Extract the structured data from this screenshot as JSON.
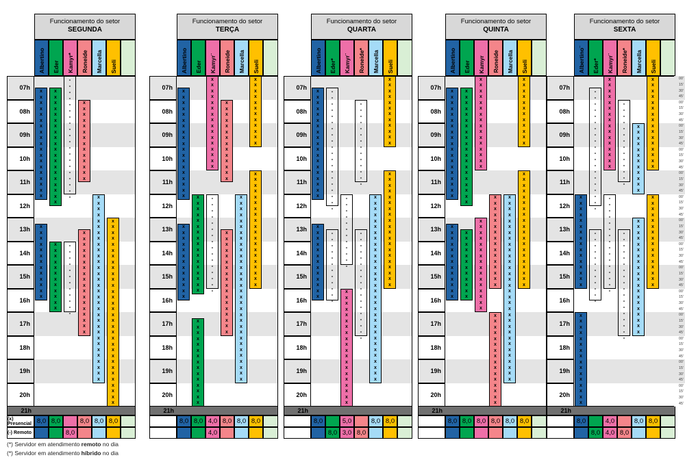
{
  "board": {
    "header_title": "Funcionamento do setor",
    "time_labels": [
      "07h",
      "08h",
      "09h",
      "10h",
      "11h",
      "12h",
      "13h",
      "14h",
      "15h",
      "16h",
      "17h",
      "18h",
      "19h",
      "20h",
      "21h"
    ],
    "quarter_labels": [
      "00'",
      "15'",
      "30'",
      "45'"
    ],
    "totals": {
      "presencial_label": "(x) Presencial",
      "remoto_label": "(-) Remoto"
    },
    "footnotes": [
      {
        "prefix": "(*) Servidor em atendimento ",
        "bold": "remoto",
        "suffix": " no dia"
      },
      {
        "prefix": "(*) Servidor em atendimento ",
        "bold": "híbrido",
        "suffix": " no dia"
      }
    ],
    "colors": {
      "albertino": "#2163A4",
      "eder": "#00A550",
      "kamyr": "#EE6FA8",
      "roneide": "#F4858A",
      "marcella": "#A5DBF7",
      "sueli": "#FFC000",
      "extra": "#D9EFD5",
      "stripe": "#E4E4E4",
      "dark_row": "#707070",
      "header_bg": "#D8D8D8"
    }
  },
  "chart_data": {
    "type": "table",
    "title": "Funcionamento do setor",
    "time_axis": {
      "start": "07:00",
      "end": "21:00",
      "step_minutes": 15
    },
    "symbols": {
      "presencial": "x",
      "remoto": "-"
    },
    "days": [
      {
        "day": "SEGUNDA",
        "people": [
          {
            "name": "Albertino",
            "color": "albertino",
            "presencial": "8,0",
            "remoto": "",
            "blocks": [
              {
                "start": "07:30",
                "end": "12:15",
                "mode": "presencial"
              },
              {
                "start": "13:15",
                "end": "16:30",
                "mode": "presencial"
              }
            ]
          },
          {
            "name": "Eder",
            "color": "eder",
            "presencial": "8,0",
            "remoto": "",
            "blocks": [
              {
                "start": "07:30",
                "end": "12:30",
                "mode": "presencial"
              },
              {
                "start": "14:00",
                "end": "17:00",
                "mode": "presencial"
              }
            ]
          },
          {
            "name": "Kamyr*",
            "color": "kamyr",
            "presencial": "",
            "remoto": "8,0",
            "blocks": [
              {
                "start": "07:00",
                "end": "12:00",
                "mode": "remoto"
              },
              {
                "start": "14:00",
                "end": "17:00",
                "mode": "remoto"
              }
            ]
          },
          {
            "name": "Roneide",
            "color": "roneide",
            "presencial": "8,0",
            "remoto": "",
            "blocks": [
              {
                "start": "08:00",
                "end": "11:30",
                "mode": "presencial"
              },
              {
                "start": "13:30",
                "end": "18:00",
                "mode": "presencial"
              }
            ]
          },
          {
            "name": "Marcella",
            "color": "marcella",
            "presencial": "8,0",
            "remoto": "",
            "blocks": [
              {
                "start": "12:00",
                "end": "20:00",
                "mode": "presencial"
              }
            ]
          },
          {
            "name": "Sueli",
            "color": "sueli",
            "presencial": "8,0",
            "remoto": "",
            "blocks": [
              {
                "start": "13:00",
                "end": "21:00",
                "mode": "presencial"
              }
            ]
          }
        ]
      },
      {
        "day": "TERÇA",
        "people": [
          {
            "name": "Albertino",
            "color": "albertino",
            "presencial": "8,0",
            "remoto": "",
            "blocks": [
              {
                "start": "07:30",
                "end": "12:15",
                "mode": "presencial"
              },
              {
                "start": "13:15",
                "end": "16:30",
                "mode": "presencial"
              }
            ]
          },
          {
            "name": "Eder",
            "color": "eder",
            "presencial": "8,0",
            "remoto": "",
            "blocks": [
              {
                "start": "12:00",
                "end": "16:15",
                "mode": "presencial"
              },
              {
                "start": "17:15",
                "end": "21:00",
                "mode": "presencial"
              }
            ]
          },
          {
            "name": "Kamyr¨",
            "color": "kamyr",
            "presencial": "4,0",
            "remoto": "4,0",
            "blocks": [
              {
                "start": "07:00",
                "end": "11:00",
                "mode": "presencial"
              },
              {
                "start": "12:00",
                "end": "16:00",
                "mode": "remoto"
              }
            ]
          },
          {
            "name": "Roneide",
            "color": "roneide",
            "presencial": "8,0",
            "remoto": "",
            "blocks": [
              {
                "start": "08:00",
                "end": "11:30",
                "mode": "presencial"
              },
              {
                "start": "13:30",
                "end": "18:00",
                "mode": "presencial"
              }
            ]
          },
          {
            "name": "Marcella",
            "color": "marcella",
            "presencial": "8,0",
            "remoto": "",
            "blocks": [
              {
                "start": "12:00",
                "end": "20:00",
                "mode": "presencial"
              }
            ]
          },
          {
            "name": "Sueli",
            "color": "sueli",
            "presencial": "8,0",
            "remoto": "",
            "blocks": [
              {
                "start": "07:00",
                "end": "10:00",
                "mode": "presencial"
              },
              {
                "start": "11:00",
                "end": "16:00",
                "mode": "presencial"
              }
            ]
          }
        ]
      },
      {
        "day": "QUARTA",
        "people": [
          {
            "name": "Albertino",
            "color": "albertino",
            "presencial": "8,0",
            "remoto": "",
            "blocks": [
              {
                "start": "07:30",
                "end": "12:15",
                "mode": "presencial"
              },
              {
                "start": "13:15",
                "end": "16:30",
                "mode": "presencial"
              }
            ]
          },
          {
            "name": "Eder*",
            "color": "eder",
            "presencial": "",
            "remoto": "8,0",
            "blocks": [
              {
                "start": "07:30",
                "end": "12:30",
                "mode": "remoto"
              },
              {
                "start": "13:30",
                "end": "16:30",
                "mode": "remoto"
              }
            ]
          },
          {
            "name": "Kamyr¨",
            "color": "kamyr",
            "presencial": "5,0",
            "remoto": "3,0",
            "blocks": [
              {
                "start": "12:00",
                "end": "15:00",
                "mode": "remoto"
              },
              {
                "start": "16:00",
                "end": "21:00",
                "mode": "presencial"
              }
            ]
          },
          {
            "name": "Roneide*",
            "color": "roneide",
            "presencial": "",
            "remoto": "8,0",
            "blocks": [
              {
                "start": "08:00",
                "end": "11:30",
                "mode": "remoto"
              },
              {
                "start": "13:30",
                "end": "18:00",
                "mode": "remoto"
              }
            ]
          },
          {
            "name": "Marcella",
            "color": "marcella",
            "presencial": "8,0",
            "remoto": "",
            "blocks": [
              {
                "start": "12:00",
                "end": "20:00",
                "mode": "presencial"
              }
            ]
          },
          {
            "name": "Sueli",
            "color": "sueli",
            "presencial": "8,0",
            "remoto": "",
            "blocks": [
              {
                "start": "07:00",
                "end": "10:00",
                "mode": "presencial"
              },
              {
                "start": "11:00",
                "end": "16:00",
                "mode": "presencial"
              }
            ]
          }
        ]
      },
      {
        "day": "QUINTA",
        "people": [
          {
            "name": "Albertino",
            "color": "albertino",
            "presencial": "8,0",
            "remoto": "",
            "blocks": [
              {
                "start": "07:30",
                "end": "12:15",
                "mode": "presencial"
              },
              {
                "start": "13:15",
                "end": "16:30",
                "mode": "presencial"
              }
            ]
          },
          {
            "name": "Eder",
            "color": "eder",
            "presencial": "8,0",
            "remoto": "",
            "blocks": [
              {
                "start": "07:30",
                "end": "12:30",
                "mode": "presencial"
              },
              {
                "start": "13:30",
                "end": "16:30",
                "mode": "presencial"
              }
            ]
          },
          {
            "name": "Kamyr",
            "color": "kamyr",
            "presencial": "8,0",
            "remoto": "",
            "blocks": [
              {
                "start": "07:00",
                "end": "11:00",
                "mode": "presencial"
              },
              {
                "start": "13:00",
                "end": "17:00",
                "mode": "presencial"
              }
            ]
          },
          {
            "name": "Roneide",
            "color": "roneide",
            "presencial": "8,0",
            "remoto": "",
            "blocks": [
              {
                "start": "12:00",
                "end": "16:00",
                "mode": "presencial"
              },
              {
                "start": "17:00",
                "end": "21:00",
                "mode": "presencial"
              }
            ]
          },
          {
            "name": "Marcella",
            "color": "marcella",
            "presencial": "8,0",
            "remoto": "",
            "blocks": [
              {
                "start": "12:00",
                "end": "20:00",
                "mode": "presencial"
              }
            ]
          },
          {
            "name": "Sueli",
            "color": "sueli",
            "presencial": "8,0",
            "remoto": "",
            "blocks": [
              {
                "start": "07:00",
                "end": "10:00",
                "mode": "presencial"
              },
              {
                "start": "11:00",
                "end": "16:00",
                "mode": "presencial"
              }
            ]
          }
        ]
      },
      {
        "day": "SEXTA",
        "people": [
          {
            "name": "Albertino¨",
            "color": "albertino",
            "presencial": "8,0",
            "remoto": "",
            "blocks": [
              {
                "start": "12:00",
                "end": "16:00",
                "mode": "presencial"
              },
              {
                "start": "17:00",
                "end": "21:00",
                "mode": "presencial"
              }
            ]
          },
          {
            "name": "Eder*",
            "color": "eder",
            "presencial": "",
            "remoto": "8,0",
            "blocks": [
              {
                "start": "07:30",
                "end": "12:30",
                "mode": "remoto"
              },
              {
                "start": "13:30",
                "end": "16:30",
                "mode": "remoto"
              }
            ]
          },
          {
            "name": "Kamyr¨",
            "color": "kamyr",
            "presencial": "4,0",
            "remoto": "4,0",
            "blocks": [
              {
                "start": "07:00",
                "end": "11:00",
                "mode": "presencial"
              },
              {
                "start": "12:00",
                "end": "16:00",
                "mode": "remoto"
              }
            ]
          },
          {
            "name": "Roneide*",
            "color": "roneide",
            "presencial": "",
            "remoto": "8,0",
            "blocks": [
              {
                "start": "08:00",
                "end": "11:30",
                "mode": "remoto"
              },
              {
                "start": "13:30",
                "end": "18:00",
                "mode": "remoto"
              }
            ]
          },
          {
            "name": "Marcella",
            "color": "marcella",
            "presencial": "8,0",
            "remoto": "",
            "blocks": [
              {
                "start": "09:00",
                "end": "12:00",
                "mode": "presencial"
              },
              {
                "start": "13:00",
                "end": "18:00",
                "mode": "presencial"
              }
            ]
          },
          {
            "name": "Sueli",
            "color": "sueli",
            "presencial": "8,0",
            "remoto": "",
            "blocks": [
              {
                "start": "07:00",
                "end": "11:00",
                "mode": "presencial"
              },
              {
                "start": "12:00",
                "end": "16:00",
                "mode": "presencial"
              }
            ]
          }
        ]
      }
    ]
  }
}
